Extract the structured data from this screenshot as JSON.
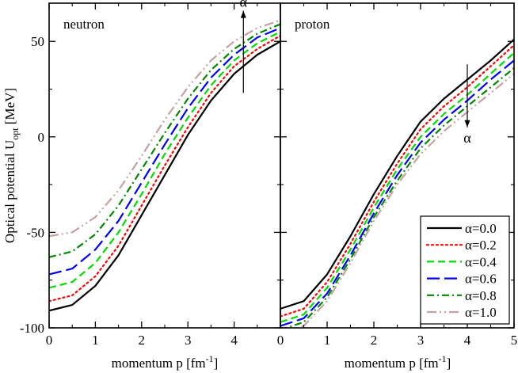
{
  "chart_data": [
    {
      "type": "line",
      "panel_label": "neutron",
      "xlabel": "momentum p [fm",
      "xlabel_sup": "-1",
      "xlabel_tail": "]",
      "ylabel": "Optical potential U",
      "ylabel_sub": "opt",
      "ylabel_tail": " [MeV]",
      "xlim": [
        0,
        5
      ],
      "ylim": [
        -100,
        70
      ],
      "xticks": [
        0,
        1,
        2,
        3,
        4,
        5
      ],
      "xtick_labels": [
        "0",
        "1",
        "2",
        "3",
        "4",
        ""
      ],
      "yticks": [
        -100,
        -50,
        0,
        50
      ],
      "ytick_labels": [
        "-100",
        "-50",
        "0",
        "50"
      ],
      "arrow": {
        "label": "α",
        "direction": "up",
        "x": 4.2,
        "y_from": 23,
        "y_to": 66
      },
      "series": [
        {
          "name": "α=0.0",
          "color": "#000000",
          "dash": "solid",
          "x": [
            0,
            0.5,
            1,
            1.5,
            2,
            2.5,
            3,
            3.5,
            4,
            4.5,
            5
          ],
          "values": [
            -91,
            -88,
            -78,
            -62,
            -41,
            -20,
            1,
            19,
            33,
            43,
            50
          ]
        },
        {
          "name": "α=0.2",
          "color": "#ff0000",
          "dash": "dot",
          "x": [
            0,
            0.5,
            1,
            1.5,
            2,
            2.5,
            3,
            3.5,
            4,
            4.5,
            5
          ],
          "values": [
            -86,
            -83,
            -73,
            -57,
            -36,
            -15,
            5,
            23,
            37,
            46,
            53
          ]
        },
        {
          "name": "α=0.4",
          "color": "#00dd00",
          "dash": "dash",
          "x": [
            0,
            0.5,
            1,
            1.5,
            2,
            2.5,
            3,
            3.5,
            4,
            4.5,
            5
          ],
          "values": [
            -79,
            -76,
            -66,
            -50,
            -30,
            -9,
            10,
            27,
            40,
            49,
            55
          ]
        },
        {
          "name": "α=0.6",
          "color": "#0000ff",
          "dash": "longdash",
          "x": [
            0,
            0.5,
            1,
            1.5,
            2,
            2.5,
            3,
            3.5,
            4,
            4.5,
            5
          ],
          "values": [
            -72,
            -69,
            -59,
            -44,
            -24,
            -4,
            15,
            31,
            43,
            52,
            57
          ]
        },
        {
          "name": "α=0.8",
          "color": "#008800",
          "dash": "dashdot",
          "x": [
            0,
            0.5,
            1,
            1.5,
            2,
            2.5,
            3,
            3.5,
            4,
            4.5,
            5
          ],
          "values": [
            -63,
            -60,
            -51,
            -36,
            -17,
            2,
            20,
            35,
            46,
            54,
            59
          ]
        },
        {
          "name": "α=1.0",
          "color": "#c8a0a0",
          "dash": "dashdotdot",
          "x": [
            0,
            0.5,
            1,
            1.5,
            2,
            2.5,
            3,
            3.5,
            4,
            4.5,
            5
          ],
          "values": [
            -52,
            -50,
            -42,
            -28,
            -10,
            9,
            26,
            40,
            50,
            57,
            61
          ]
        }
      ]
    },
    {
      "type": "line",
      "panel_label": "proton",
      "xlabel": "momentum p [fm",
      "xlabel_sup": "-1",
      "xlabel_tail": "]",
      "xlim": [
        0,
        5
      ],
      "ylim": [
        -100,
        70
      ],
      "xticks": [
        0,
        1,
        2,
        3,
        4,
        5
      ],
      "xtick_labels": [
        "0",
        "1",
        "2",
        "3",
        "4",
        "5"
      ],
      "arrow": {
        "label": "α",
        "direction": "down",
        "x": 4.0,
        "y_from": 38,
        "y_to": 5
      },
      "legend": {
        "position": "bottom-right"
      },
      "series": [
        {
          "name": "α=0.0",
          "color": "#000000",
          "dash": "solid",
          "x": [
            0,
            0.5,
            1,
            1.5,
            2,
            2.5,
            3,
            3.5,
            4,
            4.5,
            5
          ],
          "values": [
            -90,
            -86,
            -72,
            -52,
            -30,
            -10,
            8,
            20,
            30,
            40,
            51
          ]
        },
        {
          "name": "α=0.2",
          "color": "#ff0000",
          "dash": "dot",
          "x": [
            0,
            0.5,
            1,
            1.5,
            2,
            2.5,
            3,
            3.5,
            4,
            4.5,
            5
          ],
          "values": [
            -94,
            -90,
            -76,
            -56,
            -34,
            -14,
            4,
            16,
            26,
            37,
            48
          ]
        },
        {
          "name": "α=0.4",
          "color": "#00dd00",
          "dash": "dash",
          "x": [
            0,
            0.5,
            1,
            1.5,
            2,
            2.5,
            3,
            3.5,
            4,
            4.5,
            5
          ],
          "values": [
            -97,
            -93,
            -79,
            -59,
            -37,
            -17,
            0,
            12,
            22,
            33,
            44
          ]
        },
        {
          "name": "α=0.6",
          "color": "#0000ff",
          "dash": "longdash",
          "x": [
            0,
            0.5,
            1,
            1.5,
            2,
            2.5,
            3,
            3.5,
            4,
            4.5,
            5
          ],
          "values": [
            -99,
            -95,
            -82,
            -62,
            -40,
            -20,
            -3,
            9,
            19,
            30,
            40
          ]
        },
        {
          "name": "α=0.8",
          "color": "#008800",
          "dash": "dashdot",
          "x": [
            0,
            0.5,
            1,
            1.5,
            2,
            2.5,
            3,
            3.5,
            4,
            4.5,
            5
          ],
          "values": [
            -101,
            -97,
            -84,
            -64,
            -42,
            -23,
            -6,
            6,
            16,
            26,
            36
          ]
        },
        {
          "name": "α=1.0",
          "color": "#c8a0a0",
          "dash": "dashdotdot",
          "x": [
            0,
            0.5,
            1,
            1.5,
            2,
            2.5,
            3,
            3.5,
            4,
            4.5,
            5
          ],
          "values": [
            -103,
            -99,
            -86,
            -66,
            -44,
            -25,
            -9,
            3,
            13,
            23,
            33
          ]
        }
      ]
    }
  ]
}
